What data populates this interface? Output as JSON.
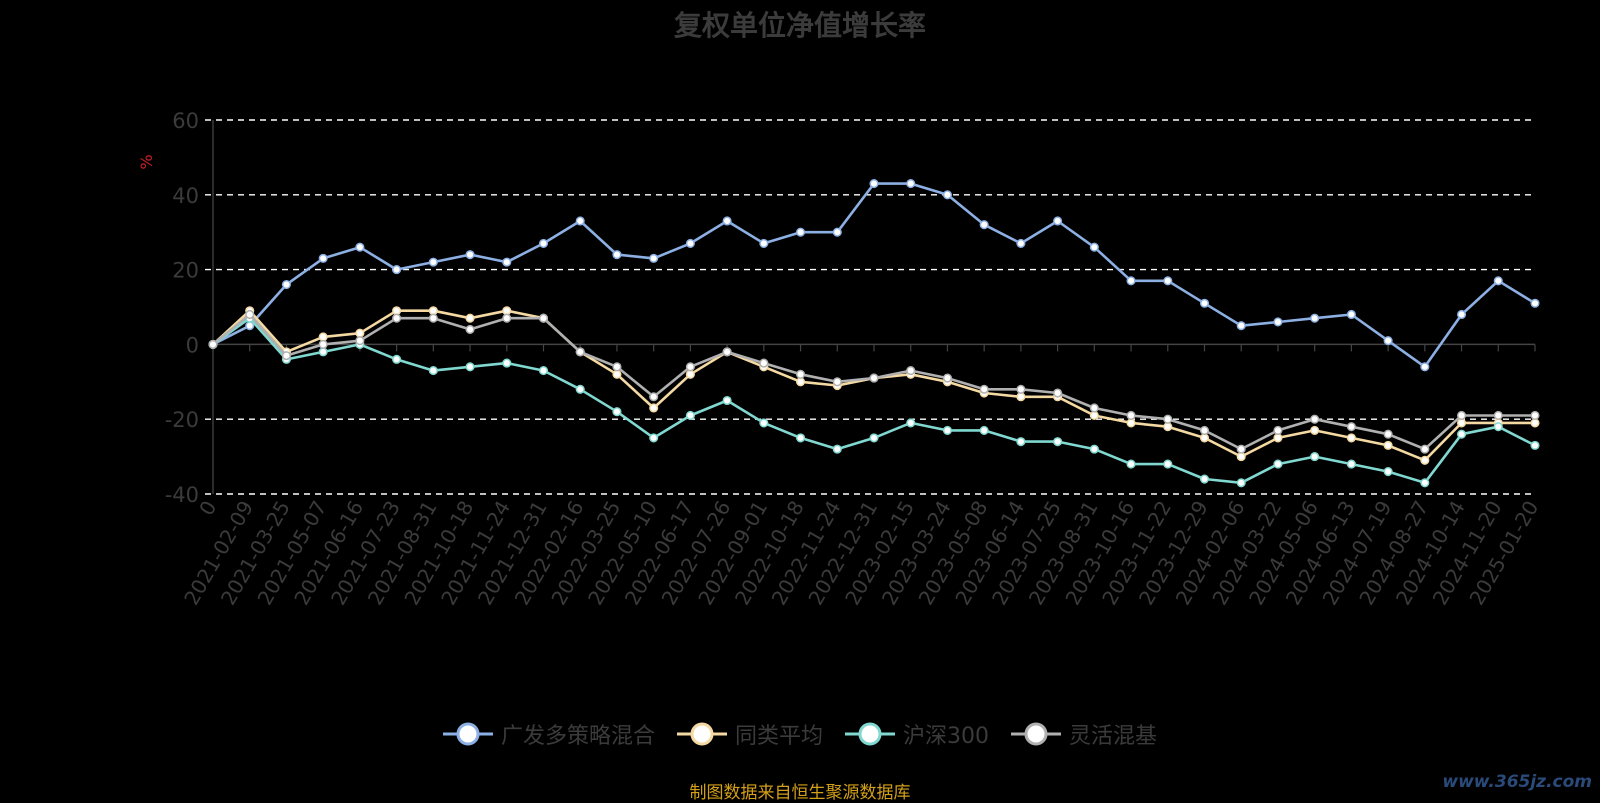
{
  "chart_data": {
    "type": "line",
    "title": "复权单位净值增长率",
    "ylabel": "%",
    "ylim": [
      -40,
      60
    ],
    "yticks": [
      -40,
      -20,
      0,
      20,
      40,
      60
    ],
    "grid": true,
    "legend_position": "bottom",
    "x_labels": [
      "0",
      "2021-02-09",
      "2021-03-25",
      "2021-05-07",
      "2021-06-16",
      "2021-07-23",
      "2021-08-31",
      "2021-10-18",
      "2021-11-24",
      "2021-12-31",
      "2022-02-16",
      "2022-03-25",
      "2022-05-10",
      "2022-06-17",
      "2022-07-26",
      "2022-09-01",
      "2022-10-18",
      "2022-11-24",
      "2022-12-31",
      "2023-02-15",
      "2023-03-24",
      "2023-05-08",
      "2023-06-14",
      "2023-07-25",
      "2023-08-31",
      "2023-10-16",
      "2023-11-22",
      "2023-12-29",
      "2024-02-06",
      "2024-03-22",
      "2024-05-06",
      "2024-06-13",
      "2024-07-19",
      "2024-08-27",
      "2024-10-14",
      "2024-11-20",
      "2025-01-20"
    ],
    "series": [
      {
        "name": "广发多策略混合",
        "color": "#8db0e4",
        "values": [
          0,
          5,
          16,
          23,
          26,
          20,
          22,
          24,
          22,
          27,
          33,
          24,
          23,
          27,
          33,
          27,
          30,
          30,
          43,
          43,
          40,
          32,
          27,
          33,
          26,
          17,
          17,
          11,
          5,
          6,
          7,
          8,
          1,
          -6,
          8,
          17,
          11
        ]
      },
      {
        "name": "同类平均",
        "color": "#f5d9a3",
        "values": [
          0,
          9,
          -2,
          2,
          3,
          9,
          9,
          7,
          9,
          7,
          -2,
          -8,
          -17,
          -8,
          -2,
          -6,
          -10,
          -11,
          -9,
          -8,
          -10,
          -13,
          -14,
          -14,
          -19,
          -21,
          -22,
          -25,
          -30,
          -25,
          -23,
          -25,
          -27,
          -31,
          -21,
          -21,
          -21
        ]
      },
      {
        "name": "沪深300",
        "color": "#80d8d0",
        "values": [
          0,
          7,
          -4,
          -2,
          0,
          -4,
          -7,
          -6,
          -5,
          -7,
          -12,
          -18,
          -25,
          -19,
          -15,
          -21,
          -25,
          -28,
          -25,
          -21,
          -23,
          -23,
          -26,
          -26,
          -28,
          -32,
          -32,
          -36,
          -37,
          -32,
          -30,
          -32,
          -34,
          -37,
          -24,
          -22,
          -27
        ]
      },
      {
        "name": "灵活混基",
        "color": "#b0b0b0",
        "values": [
          0,
          8,
          -3,
          0,
          1,
          7,
          7,
          4,
          7,
          7,
          -2,
          -6,
          -14,
          -6,
          -2,
          -5,
          -8,
          -10,
          -9,
          -7,
          -9,
          -12,
          -12,
          -13,
          -17,
          -19,
          -20,
          -23,
          -28,
          -23,
          -20,
          -22,
          -24,
          -28,
          -19,
          -19,
          -19
        ]
      }
    ]
  },
  "legend": {
    "items": [
      {
        "label": "广发多策略混合",
        "color": "#8db0e4"
      },
      {
        "label": "同类平均",
        "color": "#f5d9a3"
      },
      {
        "label": "沪深300",
        "color": "#80d8d0"
      },
      {
        "label": "灵活混基",
        "color": "#b0b0b0"
      }
    ]
  },
  "footer": {
    "source": "制图数据来自恒生聚源数据库",
    "watermark": "www.365jz.com"
  }
}
